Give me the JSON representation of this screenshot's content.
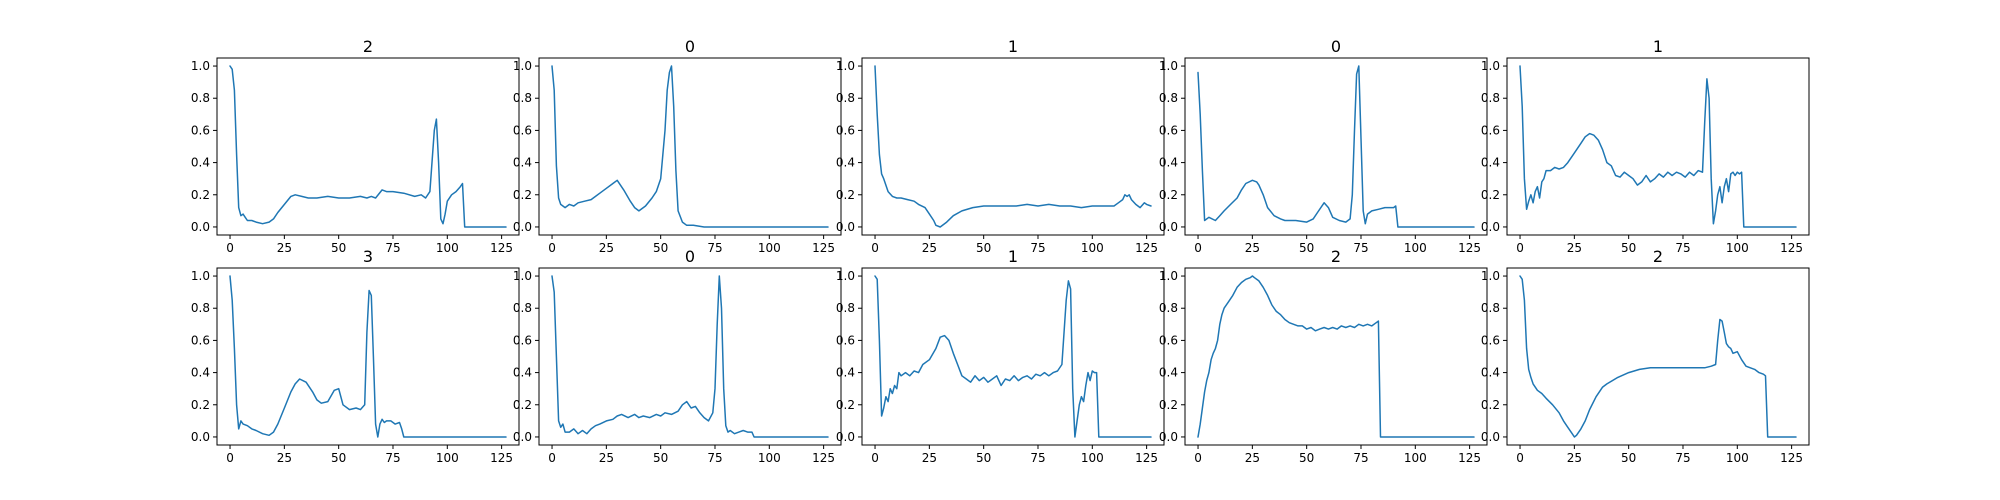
{
  "chart_data": [
    {
      "type": "line",
      "title": "2",
      "xlim": [
        -6,
        133
      ],
      "ylim": [
        -0.05,
        1.05
      ],
      "xticks": [
        0,
        25,
        50,
        75,
        100,
        125
      ],
      "yticks": [
        0.0,
        0.2,
        0.4,
        0.6,
        0.8,
        1.0
      ],
      "x": [
        0,
        1,
        2,
        3,
        4,
        5,
        6,
        7,
        8,
        10,
        12,
        15,
        18,
        20,
        22,
        25,
        28,
        30,
        33,
        36,
        40,
        45,
        50,
        55,
        60,
        63,
        65,
        67,
        70,
        72,
        75,
        80,
        85,
        88,
        90,
        92,
        94,
        95,
        96,
        97,
        98,
        99,
        100,
        102,
        104,
        106,
        107,
        108,
        110,
        115,
        120,
        127
      ],
      "y": [
        1.0,
        0.98,
        0.85,
        0.45,
        0.12,
        0.07,
        0.08,
        0.06,
        0.04,
        0.04,
        0.03,
        0.02,
        0.03,
        0.05,
        0.09,
        0.14,
        0.19,
        0.2,
        0.19,
        0.18,
        0.18,
        0.19,
        0.18,
        0.18,
        0.19,
        0.18,
        0.19,
        0.18,
        0.23,
        0.22,
        0.22,
        0.21,
        0.19,
        0.2,
        0.18,
        0.22,
        0.6,
        0.67,
        0.4,
        0.05,
        0.02,
        0.08,
        0.16,
        0.2,
        0.22,
        0.25,
        0.27,
        0.0,
        0.0,
        0.0,
        0.0,
        0.0
      ],
      "series": [
        {
          "color": "#1f77b4"
        }
      ]
    },
    {
      "type": "line",
      "title": "0",
      "xlim": [
        -6,
        133
      ],
      "ylim": [
        -0.05,
        1.05
      ],
      "xticks": [
        0,
        25,
        50,
        75,
        100,
        125
      ],
      "yticks": [
        0.0,
        0.2,
        0.4,
        0.6,
        0.8,
        1.0
      ],
      "x": [
        0,
        1,
        2,
        3,
        4,
        6,
        8,
        10,
        12,
        15,
        18,
        20,
        22,
        25,
        28,
        30,
        33,
        36,
        38,
        40,
        43,
        46,
        48,
        50,
        52,
        53,
        54,
        55,
        56,
        57,
        58,
        60,
        62,
        65,
        70,
        80,
        100,
        127
      ],
      "y": [
        1.0,
        0.85,
        0.38,
        0.18,
        0.14,
        0.12,
        0.14,
        0.13,
        0.15,
        0.16,
        0.17,
        0.19,
        0.21,
        0.24,
        0.27,
        0.29,
        0.23,
        0.16,
        0.12,
        0.1,
        0.13,
        0.18,
        0.22,
        0.3,
        0.6,
        0.85,
        0.96,
        1.0,
        0.75,
        0.35,
        0.1,
        0.03,
        0.01,
        0.01,
        0.0,
        0.0,
        0.0,
        0.0
      ],
      "series": [
        {
          "color": "#1f77b4"
        }
      ]
    },
    {
      "type": "line",
      "title": "1",
      "xlim": [
        -6,
        133
      ],
      "ylim": [
        -0.05,
        1.05
      ],
      "xticks": [
        0,
        25,
        50,
        75,
        100,
        125
      ],
      "yticks": [
        0.0,
        0.2,
        0.4,
        0.6,
        0.8,
        1.0
      ],
      "x": [
        0,
        1,
        2,
        3,
        4,
        6,
        8,
        10,
        12,
        15,
        18,
        20,
        23,
        25,
        27,
        28,
        30,
        33,
        36,
        40,
        45,
        50,
        55,
        60,
        65,
        70,
        75,
        80,
        85,
        90,
        95,
        100,
        105,
        110,
        112,
        114,
        115,
        116,
        117,
        118,
        120,
        122,
        124,
        125,
        127
      ],
      "y": [
        1.0,
        0.7,
        0.45,
        0.33,
        0.3,
        0.22,
        0.19,
        0.18,
        0.18,
        0.17,
        0.16,
        0.14,
        0.12,
        0.08,
        0.04,
        0.01,
        0.0,
        0.03,
        0.07,
        0.1,
        0.12,
        0.13,
        0.13,
        0.13,
        0.13,
        0.14,
        0.13,
        0.14,
        0.13,
        0.13,
        0.12,
        0.13,
        0.13,
        0.13,
        0.15,
        0.17,
        0.2,
        0.19,
        0.2,
        0.17,
        0.14,
        0.12,
        0.15,
        0.14,
        0.13
      ],
      "series": [
        {
          "color": "#1f77b4"
        }
      ]
    },
    {
      "type": "line",
      "title": "0",
      "xlim": [
        -6,
        133
      ],
      "ylim": [
        -0.05,
        1.05
      ],
      "xticks": [
        0,
        25,
        50,
        75,
        100,
        125
      ],
      "yticks": [
        0.0,
        0.2,
        0.4,
        0.6,
        0.8,
        1.0
      ],
      "x": [
        0,
        1,
        2,
        3,
        5,
        8,
        10,
        12,
        15,
        18,
        20,
        22,
        25,
        27,
        28,
        30,
        32,
        35,
        38,
        40,
        45,
        50,
        53,
        55,
        58,
        60,
        62,
        65,
        68,
        70,
        71,
        72,
        73,
        74,
        75,
        76,
        77,
        78,
        80,
        83,
        86,
        90,
        91,
        92,
        95,
        100,
        110,
        127
      ],
      "y": [
        0.96,
        0.7,
        0.35,
        0.04,
        0.06,
        0.04,
        0.07,
        0.1,
        0.14,
        0.18,
        0.23,
        0.27,
        0.29,
        0.28,
        0.26,
        0.2,
        0.12,
        0.07,
        0.05,
        0.04,
        0.04,
        0.03,
        0.05,
        0.09,
        0.15,
        0.12,
        0.06,
        0.04,
        0.03,
        0.05,
        0.2,
        0.6,
        0.95,
        1.0,
        0.55,
        0.1,
        0.02,
        0.08,
        0.1,
        0.11,
        0.12,
        0.12,
        0.13,
        0.0,
        0.0,
        0.0,
        0.0,
        0.0
      ],
      "series": [
        {
          "color": "#1f77b4"
        }
      ]
    },
    {
      "type": "line",
      "title": "1",
      "xlim": [
        -6,
        133
      ],
      "ylim": [
        -0.05,
        1.05
      ],
      "xticks": [
        0,
        25,
        50,
        75,
        100,
        125
      ],
      "yticks": [
        0.0,
        0.2,
        0.4,
        0.6,
        0.8,
        1.0
      ],
      "x": [
        0,
        1,
        2,
        3,
        4,
        5,
        6,
        7,
        8,
        9,
        10,
        11,
        12,
        14,
        16,
        18,
        20,
        22,
        25,
        28,
        30,
        32,
        34,
        36,
        38,
        40,
        42,
        44,
        46,
        48,
        50,
        52,
        54,
        56,
        58,
        60,
        62,
        64,
        66,
        68,
        70,
        72,
        74,
        76,
        78,
        80,
        82,
        84,
        85,
        86,
        87,
        88,
        89,
        90,
        91,
        92,
        93,
        94,
        95,
        96,
        97,
        98,
        99,
        100,
        101,
        102,
        103,
        104,
        105,
        106,
        110,
        127
      ],
      "y": [
        1.0,
        0.75,
        0.3,
        0.11,
        0.16,
        0.2,
        0.15,
        0.22,
        0.25,
        0.18,
        0.28,
        0.3,
        0.35,
        0.35,
        0.37,
        0.36,
        0.37,
        0.4,
        0.46,
        0.52,
        0.56,
        0.58,
        0.57,
        0.54,
        0.48,
        0.4,
        0.38,
        0.32,
        0.31,
        0.34,
        0.32,
        0.3,
        0.26,
        0.28,
        0.32,
        0.28,
        0.3,
        0.33,
        0.31,
        0.34,
        0.32,
        0.34,
        0.33,
        0.31,
        0.34,
        0.32,
        0.35,
        0.34,
        0.65,
        0.92,
        0.8,
        0.3,
        0.02,
        0.1,
        0.2,
        0.25,
        0.15,
        0.25,
        0.3,
        0.22,
        0.33,
        0.34,
        0.32,
        0.34,
        0.33,
        0.34,
        0.0,
        0.0,
        0.0,
        0.0,
        0.0,
        0.0
      ],
      "series": [
        {
          "color": "#1f77b4"
        }
      ]
    },
    {
      "type": "line",
      "title": "3",
      "xlim": [
        -6,
        133
      ],
      "ylim": [
        -0.05,
        1.05
      ],
      "xticks": [
        0,
        25,
        50,
        75,
        100,
        125
      ],
      "yticks": [
        0.0,
        0.2,
        0.4,
        0.6,
        0.8,
        1.0
      ],
      "x": [
        0,
        1,
        2,
        3,
        4,
        5,
        6,
        8,
        10,
        12,
        15,
        18,
        20,
        22,
        25,
        28,
        30,
        32,
        35,
        38,
        40,
        42,
        45,
        48,
        50,
        52,
        55,
        58,
        60,
        62,
        63,
        64,
        65,
        66,
        67,
        68,
        69,
        70,
        71,
        72,
        74,
        76,
        78,
        79,
        80,
        85,
        100,
        127
      ],
      "y": [
        1.0,
        0.85,
        0.55,
        0.2,
        0.05,
        0.1,
        0.08,
        0.07,
        0.05,
        0.04,
        0.02,
        0.01,
        0.03,
        0.08,
        0.18,
        0.28,
        0.33,
        0.36,
        0.34,
        0.28,
        0.23,
        0.21,
        0.22,
        0.29,
        0.3,
        0.2,
        0.17,
        0.18,
        0.17,
        0.2,
        0.65,
        0.91,
        0.88,
        0.5,
        0.08,
        0.0,
        0.08,
        0.11,
        0.09,
        0.1,
        0.1,
        0.08,
        0.09,
        0.05,
        0.0,
        0.0,
        0.0,
        0.0
      ],
      "series": [
        {
          "color": "#1f77b4"
        }
      ]
    },
    {
      "type": "line",
      "title": "0",
      "xlim": [
        -6,
        133
      ],
      "ylim": [
        -0.05,
        1.05
      ],
      "xticks": [
        0,
        25,
        50,
        75,
        100,
        125
      ],
      "yticks": [
        0.0,
        0.2,
        0.4,
        0.6,
        0.8,
        1.0
      ],
      "x": [
        0,
        1,
        2,
        3,
        4,
        5,
        6,
        8,
        10,
        12,
        14,
        16,
        18,
        20,
        22,
        25,
        28,
        30,
        32,
        35,
        38,
        40,
        42,
        45,
        48,
        50,
        52,
        55,
        58,
        60,
        62,
        64,
        66,
        68,
        70,
        72,
        74,
        75,
        76,
        77,
        78,
        79,
        80,
        81,
        82,
        84,
        86,
        88,
        90,
        92,
        93,
        95,
        100,
        110,
        127
      ],
      "y": [
        1.0,
        0.9,
        0.5,
        0.1,
        0.06,
        0.08,
        0.03,
        0.03,
        0.05,
        0.02,
        0.04,
        0.02,
        0.05,
        0.07,
        0.08,
        0.1,
        0.11,
        0.13,
        0.14,
        0.12,
        0.14,
        0.12,
        0.13,
        0.12,
        0.14,
        0.13,
        0.15,
        0.14,
        0.16,
        0.2,
        0.22,
        0.18,
        0.19,
        0.15,
        0.12,
        0.1,
        0.15,
        0.3,
        0.7,
        1.0,
        0.8,
        0.3,
        0.07,
        0.03,
        0.04,
        0.02,
        0.03,
        0.04,
        0.03,
        0.03,
        0.0,
        0.0,
        0.0,
        0.0,
        0.0
      ],
      "series": [
        {
          "color": "#1f77b4"
        }
      ]
    },
    {
      "type": "line",
      "title": "1",
      "xlim": [
        -6,
        133
      ],
      "ylim": [
        -0.05,
        1.05
      ],
      "xticks": [
        0,
        25,
        50,
        75,
        100,
        125
      ],
      "yticks": [
        0.0,
        0.2,
        0.4,
        0.6,
        0.8,
        1.0
      ],
      "x": [
        0,
        1,
        2,
        3,
        4,
        5,
        6,
        7,
        8,
        9,
        10,
        11,
        12,
        14,
        16,
        18,
        20,
        22,
        25,
        28,
        30,
        32,
        34,
        36,
        38,
        40,
        42,
        44,
        46,
        48,
        50,
        52,
        54,
        56,
        58,
        60,
        62,
        64,
        66,
        68,
        70,
        72,
        74,
        76,
        78,
        80,
        82,
        84,
        86,
        88,
        89,
        90,
        91,
        92,
        93,
        94,
        95,
        96,
        97,
        98,
        99,
        100,
        101,
        102,
        103,
        104,
        105,
        106,
        110,
        127
      ],
      "y": [
        1.0,
        0.98,
        0.6,
        0.13,
        0.18,
        0.25,
        0.22,
        0.3,
        0.27,
        0.32,
        0.3,
        0.4,
        0.38,
        0.4,
        0.38,
        0.41,
        0.4,
        0.45,
        0.48,
        0.55,
        0.62,
        0.63,
        0.6,
        0.52,
        0.45,
        0.38,
        0.36,
        0.34,
        0.38,
        0.35,
        0.37,
        0.34,
        0.36,
        0.38,
        0.32,
        0.36,
        0.35,
        0.38,
        0.35,
        0.37,
        0.38,
        0.36,
        0.39,
        0.38,
        0.4,
        0.38,
        0.4,
        0.41,
        0.45,
        0.85,
        0.97,
        0.92,
        0.3,
        0.0,
        0.1,
        0.2,
        0.25,
        0.22,
        0.32,
        0.4,
        0.35,
        0.41,
        0.4,
        0.4,
        0.0,
        0.0,
        0.0,
        0.0,
        0.0,
        0.0
      ],
      "series": [
        {
          "color": "#1f77b4"
        }
      ]
    },
    {
      "type": "line",
      "title": "2",
      "xlim": [
        -6,
        133
      ],
      "ylim": [
        -0.05,
        1.05
      ],
      "xticks": [
        0,
        25,
        50,
        75,
        100,
        125
      ],
      "yticks": [
        0.0,
        0.2,
        0.4,
        0.6,
        0.8,
        1.0
      ],
      "x": [
        0,
        1,
        2,
        3,
        4,
        5,
        6,
        7,
        8,
        9,
        10,
        11,
        12,
        14,
        16,
        18,
        20,
        22,
        24,
        25,
        26,
        28,
        30,
        32,
        34,
        36,
        38,
        40,
        42,
        44,
        46,
        48,
        50,
        52,
        54,
        56,
        58,
        60,
        62,
        64,
        66,
        68,
        70,
        72,
        74,
        76,
        78,
        80,
        82,
        83,
        84,
        90,
        100,
        127
      ],
      "y": [
        0.0,
        0.08,
        0.18,
        0.28,
        0.35,
        0.4,
        0.48,
        0.52,
        0.55,
        0.6,
        0.7,
        0.76,
        0.8,
        0.84,
        0.88,
        0.93,
        0.96,
        0.98,
        0.99,
        1.0,
        0.99,
        0.97,
        0.93,
        0.88,
        0.82,
        0.78,
        0.76,
        0.73,
        0.71,
        0.7,
        0.69,
        0.69,
        0.67,
        0.68,
        0.66,
        0.67,
        0.68,
        0.67,
        0.68,
        0.67,
        0.69,
        0.68,
        0.69,
        0.68,
        0.7,
        0.69,
        0.7,
        0.69,
        0.71,
        0.72,
        0.0,
        0.0,
        0.0,
        0.0
      ],
      "series": [
        {
          "color": "#1f77b4"
        }
      ]
    },
    {
      "type": "line",
      "title": "2",
      "xlim": [
        -6,
        133
      ],
      "ylim": [
        -0.05,
        1.05
      ],
      "xticks": [
        0,
        25,
        50,
        75,
        100,
        125
      ],
      "yticks": [
        0.0,
        0.2,
        0.4,
        0.6,
        0.8,
        1.0
      ],
      "x": [
        0,
        1,
        2,
        3,
        4,
        5,
        6,
        8,
        10,
        12,
        15,
        18,
        20,
        22,
        24,
        25,
        26,
        28,
        30,
        32,
        35,
        38,
        40,
        45,
        50,
        55,
        60,
        65,
        70,
        75,
        80,
        85,
        88,
        90,
        91,
        92,
        93,
        94,
        95,
        96,
        97,
        98,
        100,
        102,
        104,
        106,
        108,
        110,
        112,
        113,
        114,
        115,
        120,
        127
      ],
      "y": [
        1.0,
        0.98,
        0.85,
        0.55,
        0.42,
        0.37,
        0.33,
        0.29,
        0.27,
        0.24,
        0.2,
        0.15,
        0.1,
        0.06,
        0.02,
        0.0,
        0.01,
        0.05,
        0.1,
        0.17,
        0.25,
        0.31,
        0.33,
        0.37,
        0.4,
        0.42,
        0.43,
        0.43,
        0.43,
        0.43,
        0.43,
        0.43,
        0.44,
        0.45,
        0.6,
        0.73,
        0.72,
        0.65,
        0.58,
        0.56,
        0.55,
        0.52,
        0.53,
        0.48,
        0.44,
        0.43,
        0.42,
        0.4,
        0.39,
        0.38,
        0.0,
        0.0,
        0.0,
        0.0
      ],
      "series": [
        {
          "color": "#1f77b4"
        }
      ]
    }
  ]
}
